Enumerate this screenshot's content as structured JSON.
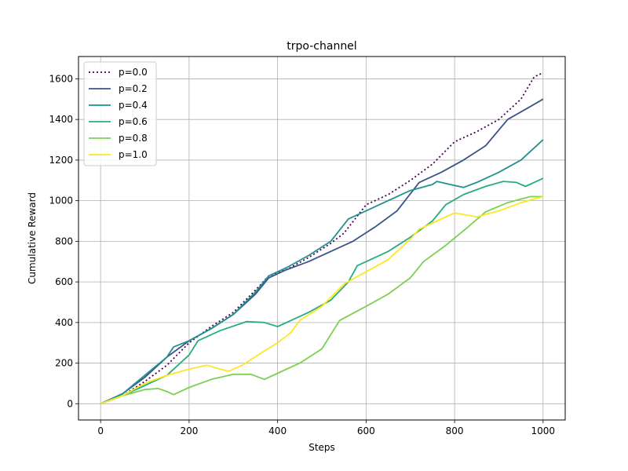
{
  "chart_data": {
    "type": "line",
    "title": "trpo-channel",
    "xlabel": "Steps",
    "ylabel": "Cumulative Reward",
    "xlim": [
      -50,
      1050
    ],
    "ylim": [
      -80,
      1710
    ],
    "xticks": [
      0,
      200,
      400,
      600,
      800,
      1000
    ],
    "yticks": [
      0,
      200,
      400,
      600,
      800,
      1000,
      1200,
      1400,
      1600
    ],
    "grid": true,
    "legend_position": "top-left",
    "series": [
      {
        "name": "p=0.0",
        "color": "#440154",
        "dash": "dotted",
        "points": [
          [
            0,
            0
          ],
          [
            50,
            40
          ],
          [
            100,
            110
          ],
          [
            150,
            190
          ],
          [
            200,
            300
          ],
          [
            250,
            380
          ],
          [
            300,
            450
          ],
          [
            350,
            560
          ],
          [
            380,
            630
          ],
          [
            420,
            660
          ],
          [
            470,
            720
          ],
          [
            520,
            790
          ],
          [
            550,
            840
          ],
          [
            600,
            980
          ],
          [
            650,
            1030
          ],
          [
            700,
            1100
          ],
          [
            750,
            1180
          ],
          [
            800,
            1290
          ],
          [
            850,
            1340
          ],
          [
            900,
            1400
          ],
          [
            950,
            1500
          ],
          [
            980,
            1610
          ],
          [
            1000,
            1630
          ]
        ]
      },
      {
        "name": "p=0.2",
        "color": "#3b528b",
        "dash": "solid",
        "points": [
          [
            0,
            0
          ],
          [
            50,
            50
          ],
          [
            100,
            130
          ],
          [
            150,
            230
          ],
          [
            200,
            310
          ],
          [
            250,
            370
          ],
          [
            300,
            440
          ],
          [
            350,
            540
          ],
          [
            380,
            620
          ],
          [
            420,
            660
          ],
          [
            470,
            700
          ],
          [
            520,
            750
          ],
          [
            570,
            800
          ],
          [
            620,
            870
          ],
          [
            670,
            950
          ],
          [
            720,
            1090
          ],
          [
            770,
            1140
          ],
          [
            820,
            1200
          ],
          [
            870,
            1270
          ],
          [
            920,
            1400
          ],
          [
            960,
            1450
          ],
          [
            1000,
            1500
          ]
        ]
      },
      {
        "name": "p=0.4",
        "color": "#21918c",
        "dash": "solid",
        "points": [
          [
            0,
            0
          ],
          [
            50,
            50
          ],
          [
            100,
            140
          ],
          [
            150,
            230
          ],
          [
            165,
            280
          ],
          [
            200,
            310
          ],
          [
            250,
            370
          ],
          [
            300,
            440
          ],
          [
            350,
            550
          ],
          [
            380,
            630
          ],
          [
            420,
            670
          ],
          [
            470,
            730
          ],
          [
            520,
            800
          ],
          [
            560,
            910
          ],
          [
            600,
            950
          ],
          [
            650,
            1000
          ],
          [
            700,
            1050
          ],
          [
            750,
            1080
          ],
          [
            760,
            1095
          ],
          [
            790,
            1080
          ],
          [
            820,
            1065
          ],
          [
            850,
            1090
          ],
          [
            900,
            1140
          ],
          [
            950,
            1200
          ],
          [
            1000,
            1300
          ]
        ]
      },
      {
        "name": "p=0.6",
        "color": "#27ad81",
        "dash": "solid",
        "points": [
          [
            0,
            0
          ],
          [
            50,
            40
          ],
          [
            100,
            90
          ],
          [
            150,
            140
          ],
          [
            200,
            240
          ],
          [
            220,
            310
          ],
          [
            270,
            360
          ],
          [
            330,
            405
          ],
          [
            370,
            400
          ],
          [
            400,
            380
          ],
          [
            430,
            410
          ],
          [
            470,
            450
          ],
          [
            520,
            510
          ],
          [
            560,
            600
          ],
          [
            580,
            680
          ],
          [
            610,
            710
          ],
          [
            650,
            750
          ],
          [
            700,
            820
          ],
          [
            750,
            900
          ],
          [
            780,
            980
          ],
          [
            820,
            1030
          ],
          [
            870,
            1070
          ],
          [
            910,
            1095
          ],
          [
            940,
            1090
          ],
          [
            960,
            1070
          ],
          [
            1000,
            1110
          ]
        ]
      },
      {
        "name": "p=0.8",
        "color": "#7ad151",
        "dash": "solid",
        "points": [
          [
            0,
            0
          ],
          [
            50,
            40
          ],
          [
            100,
            70
          ],
          [
            130,
            75
          ],
          [
            150,
            60
          ],
          [
            165,
            45
          ],
          [
            200,
            80
          ],
          [
            250,
            120
          ],
          [
            300,
            145
          ],
          [
            340,
            145
          ],
          [
            370,
            120
          ],
          [
            400,
            150
          ],
          [
            450,
            200
          ],
          [
            500,
            270
          ],
          [
            540,
            410
          ],
          [
            600,
            480
          ],
          [
            650,
            540
          ],
          [
            700,
            620
          ],
          [
            730,
            700
          ],
          [
            780,
            780
          ],
          [
            830,
            870
          ],
          [
            870,
            945
          ],
          [
            920,
            990
          ],
          [
            970,
            1020
          ],
          [
            1000,
            1020
          ]
        ]
      },
      {
        "name": "p=1.0",
        "color": "#fde725",
        "dash": "solid",
        "points": [
          [
            0,
            0
          ],
          [
            50,
            40
          ],
          [
            100,
            100
          ],
          [
            150,
            140
          ],
          [
            200,
            170
          ],
          [
            240,
            190
          ],
          [
            270,
            170
          ],
          [
            290,
            160
          ],
          [
            320,
            190
          ],
          [
            370,
            260
          ],
          [
            400,
            300
          ],
          [
            430,
            350
          ],
          [
            450,
            410
          ],
          [
            500,
            480
          ],
          [
            550,
            590
          ],
          [
            600,
            650
          ],
          [
            650,
            710
          ],
          [
            700,
            810
          ],
          [
            720,
            860
          ],
          [
            760,
            900
          ],
          [
            800,
            940
          ],
          [
            850,
            920
          ],
          [
            900,
            950
          ],
          [
            950,
            990
          ],
          [
            1000,
            1020
          ]
        ]
      }
    ]
  }
}
